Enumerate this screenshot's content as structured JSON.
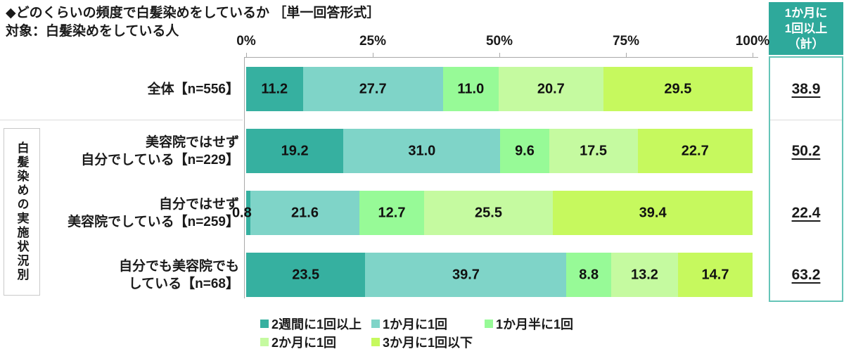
{
  "header": {
    "title": "◆どのくらいの頻度で白髪染めをしているか ［単一回答形式］",
    "subtitle": "対象：白髪染めをしている人"
  },
  "colors": {
    "summary_header_bg": "#2ea99b",
    "summary_box_border": "#66c5b8",
    "axis": "#a9a9a9",
    "separator": "#dcdcdc"
  },
  "chart_data": {
    "type": "bar",
    "stacked": true,
    "orientation": "horizontal",
    "xlim": [
      0,
      100
    ],
    "x_ticks": [
      "0%",
      "25%",
      "50%",
      "75%",
      "100%"
    ],
    "grid": false,
    "legend_position": "bottom",
    "group_label": "白髪染めの実施状況別",
    "categories": [
      "全体【n=556】",
      "美容院ではせず自分でしている【n=229】",
      "自分ではせず美容院でしている【n=259】",
      "自分でも美容院でもしている【n=68】"
    ],
    "category_label_lines": [
      [
        "全体【n=556】"
      ],
      [
        "美容院ではせず",
        "自分でしている【n=229】"
      ],
      [
        "自分ではせず",
        "美容院でしている【n=259】"
      ],
      [
        "自分でも美容院でも",
        "している【n=68】"
      ]
    ],
    "series": [
      {
        "name": "2週間に1回以上",
        "color": "#36b0a0",
        "values": [
          11.2,
          19.2,
          0.8,
          23.5
        ]
      },
      {
        "name": "1か月に1回",
        "color": "#7fd4c8",
        "values": [
          27.7,
          31.0,
          21.6,
          39.7
        ]
      },
      {
        "name": "1か月半に1回",
        "color": "#97fa97",
        "values": [
          11.0,
          9.6,
          12.7,
          8.8
        ]
      },
      {
        "name": "2か月に1回",
        "color": "#c5faa0",
        "values": [
          20.7,
          17.5,
          25.5,
          13.2
        ]
      },
      {
        "name": "3か月に1回以下",
        "color": "#c6f95e",
        "values": [
          29.5,
          22.7,
          39.4,
          14.7
        ]
      }
    ],
    "summary": {
      "header_lines": [
        "1か月に",
        "1回以上",
        "（計）"
      ],
      "header": "1か月に1回以上（計）",
      "values": [
        38.9,
        50.2,
        22.4,
        63.2
      ]
    }
  }
}
